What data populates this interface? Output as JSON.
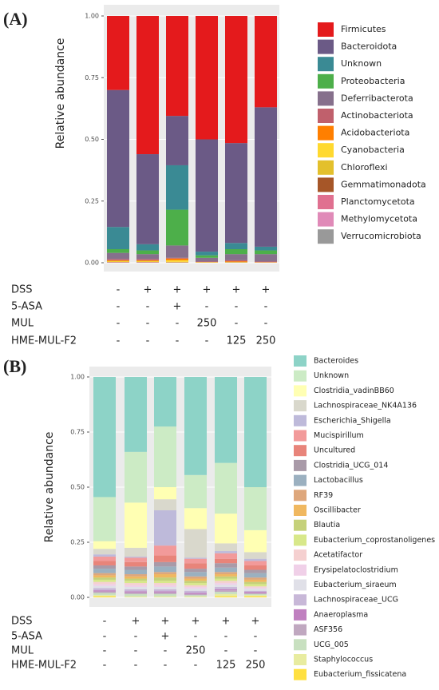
{
  "chart_data": [
    {
      "type": "stacked_bar",
      "panel_label": "(A)",
      "y_label": "Relative abundance",
      "ylim": [
        0,
        1
      ],
      "yticks": [
        {
          "value": 0,
          "label": "0.00"
        },
        {
          "value": 0.25,
          "label": "0.25"
        },
        {
          "value": 0.5,
          "label": "0.50"
        },
        {
          "value": 0.75,
          "label": "0.75"
        },
        {
          "value": 1,
          "label": "1.00"
        }
      ],
      "grid": true,
      "series": [
        {
          "name": "Firmicutes",
          "color": "#e41a1c",
          "values": [
            0.3,
            0.56,
            0.405,
            0.5,
            0.515,
            0.37
          ]
        },
        {
          "name": "Bacteroidota",
          "color": "#6b5a86",
          "values": [
            0.555,
            0.365,
            0.2,
            0.455,
            0.405,
            0.565
          ]
        },
        {
          "name": "Unknown",
          "color": "#3a8a94",
          "values": [
            0.09,
            0.025,
            0.18,
            0.015,
            0.025,
            0.015
          ]
        },
        {
          "name": "Proteobacteria",
          "color": "#4daf4a",
          "values": [
            0.015,
            0.015,
            0.145,
            0.01,
            0.02,
            0.015
          ]
        },
        {
          "name": "Deferribacterota",
          "color": "#86708c",
          "values": [
            0.025,
            0.02,
            0.05,
            0.015,
            0.025,
            0.03
          ]
        },
        {
          "name": "Actinobacteriota",
          "color": "#c0606c",
          "values": [
            0.005,
            0.005,
            0.003,
            0.002,
            0.004,
            0.002
          ]
        },
        {
          "name": "Acidobacteriota",
          "color": "#ff7f00",
          "values": [
            0.003,
            0.003,
            0.007,
            0.001,
            0.003,
            0.001
          ]
        },
        {
          "name": "Cyanobacteria",
          "color": "#ffd92f",
          "values": [
            0.002,
            0.002,
            0.006,
            0.001,
            0.001,
            0
          ]
        },
        {
          "name": "Chloroflexi",
          "color": "#e3c02c",
          "values": [
            0.002,
            0.002,
            0.002,
            0.001,
            0.001,
            0.001
          ]
        },
        {
          "name": "Gemmatimonadota",
          "color": "#a65628",
          "values": [
            0.001,
            0.001,
            0.001,
            0,
            0.001,
            0
          ]
        },
        {
          "name": "Planctomycetota",
          "color": "#e07090",
          "values": [
            0.001,
            0.001,
            0.001,
            0,
            0,
            0.001
          ]
        },
        {
          "name": "Methylomycetota",
          "color": "#e08ab8",
          "values": [
            0.001,
            0.001,
            0,
            0,
            0,
            0
          ]
        },
        {
          "name": "Verrucomicrobiota",
          "color": "#999999",
          "values": [
            0,
            0,
            0,
            0,
            0,
            0
          ]
        }
      ],
      "treatments": [
        {
          "label": "DSS",
          "values": [
            "-",
            "+",
            "+",
            "+",
            "+",
            "+"
          ]
        },
        {
          "label": "5-ASA",
          "values": [
            "-",
            "-",
            "+",
            "-",
            "-",
            "-"
          ]
        },
        {
          "label": "MUL",
          "values": [
            "-",
            "-",
            "-",
            "250",
            "-",
            "-"
          ]
        },
        {
          "label": "HME-MUL-F2",
          "values": [
            "-",
            "-",
            "-",
            "-",
            "125",
            "250"
          ]
        }
      ]
    },
    {
      "type": "stacked_bar",
      "panel_label": "(B)",
      "y_label": "Relative abundance",
      "ylim": [
        0,
        1
      ],
      "yticks": [
        {
          "value": 0,
          "label": "0.00"
        },
        {
          "value": 0.25,
          "label": "0.25"
        },
        {
          "value": 0.5,
          "label": "0.50"
        },
        {
          "value": 0.75,
          "label": "0.75"
        },
        {
          "value": 1,
          "label": "1.00"
        }
      ],
      "grid": true,
      "series": [
        {
          "name": "Bacteroides",
          "color": "#8dd3c7",
          "values": [
            0.545,
            0.34,
            0.225,
            0.445,
            0.39,
            0.5
          ]
        },
        {
          "name": "Unknown",
          "color": "#ccebc5",
          "values": [
            0.2,
            0.23,
            0.275,
            0.15,
            0.23,
            0.195
          ]
        },
        {
          "name": "Clostridia_vadinBB60",
          "color": "#ffffb3",
          "values": [
            0.035,
            0.205,
            0.055,
            0.095,
            0.135,
            0.1
          ]
        },
        {
          "name": "Lachnospiraceae_NK4A136",
          "color": "#d9d8cc",
          "values": [
            0.025,
            0.04,
            0.05,
            0.13,
            0.035,
            0.03
          ]
        },
        {
          "name": "Escherichia_Shigella",
          "color": "#bebada",
          "values": [
            0.01,
            0.005,
            0.16,
            0.005,
            0.01,
            0.01
          ]
        },
        {
          "name": "Mucispirillum",
          "color": "#f29a9a",
          "values": [
            0.02,
            0.02,
            0.045,
            0.02,
            0.025,
            0.02
          ]
        },
        {
          "name": "Uncultured",
          "color": "#e8847a",
          "values": [
            0.02,
            0.02,
            0.03,
            0.025,
            0.02,
            0.02
          ]
        },
        {
          "name": "Clostridia_UCG_014",
          "color": "#a99aa8",
          "values": [
            0.015,
            0.015,
            0.02,
            0.015,
            0.02,
            0.015
          ]
        },
        {
          "name": "Lactobacillus",
          "color": "#9bb0c0",
          "values": [
            0.02,
            0.02,
            0.025,
            0.02,
            0.02,
            0.02
          ]
        },
        {
          "name": "RF39",
          "color": "#dea77c",
          "values": [
            0.01,
            0.01,
            0.01,
            0.01,
            0.01,
            0.01
          ]
        },
        {
          "name": "Oscillibacter",
          "color": "#f0b860",
          "values": [
            0.01,
            0.01,
            0.015,
            0.01,
            0.01,
            0.01
          ]
        },
        {
          "name": "Blautia",
          "color": "#c5d17a",
          "values": [
            0.01,
            0.01,
            0.015,
            0.01,
            0.01,
            0.01
          ]
        },
        {
          "name": "Eubacterium_coprostanoligenes",
          "color": "#d8e88a",
          "values": [
            0.01,
            0.01,
            0.01,
            0.01,
            0.01,
            0.01
          ]
        },
        {
          "name": "Acetatifactor",
          "color": "#f5d0d0",
          "values": [
            0.01,
            0.01,
            0.01,
            0.008,
            0.01,
            0.005
          ]
        },
        {
          "name": "Erysipelatoclostridium",
          "color": "#f0d0e8",
          "values": [
            0.008,
            0.008,
            0.008,
            0.007,
            0.008,
            0.005
          ]
        },
        {
          "name": "Eubacterium_siraeum",
          "color": "#e0e0e8",
          "values": [
            0.01,
            0.01,
            0.01,
            0.01,
            0.01,
            0.01
          ]
        },
        {
          "name": "Lachnospiraceae_UCG",
          "color": "#c8b8d8",
          "values": [
            0.01,
            0.01,
            0.01,
            0.01,
            0.01,
            0.005
          ]
        },
        {
          "name": "Anaeroplasma",
          "color": "#c080c0",
          "values": [
            0.005,
            0.005,
            0.005,
            0.005,
            0.005,
            0.005
          ]
        },
        {
          "name": "ASF356",
          "color": "#c0a8c0",
          "values": [
            0.007,
            0.007,
            0.007,
            0.005,
            0.007,
            0.005
          ]
        },
        {
          "name": "UCG_005",
          "color": "#c8e0c0",
          "values": [
            0.01,
            0.01,
            0.01,
            0.005,
            0.01,
            0.005
          ]
        },
        {
          "name": "Staphylococcus",
          "color": "#e8eca0",
          "values": [
            0.005,
            0.005,
            0.005,
            0.005,
            0.01,
            0.005
          ]
        },
        {
          "name": "Eubacterium_fissicatena",
          "color": "#ffe040",
          "values": [
            0.005,
            0,
            0,
            0,
            0.005,
            0.005
          ]
        }
      ],
      "treatments": [
        {
          "label": "DSS",
          "values": [
            "-",
            "+",
            "+",
            "+",
            "+",
            "+"
          ]
        },
        {
          "label": "5-ASA",
          "values": [
            "-",
            "-",
            "+",
            "-",
            "-",
            "-"
          ]
        },
        {
          "label": "MUL",
          "values": [
            "-",
            "-",
            "-",
            "250",
            "-",
            "-"
          ]
        },
        {
          "label": "HME-MUL-F2",
          "values": [
            "-",
            "-",
            "-",
            "-",
            "125",
            "250"
          ]
        }
      ]
    }
  ]
}
